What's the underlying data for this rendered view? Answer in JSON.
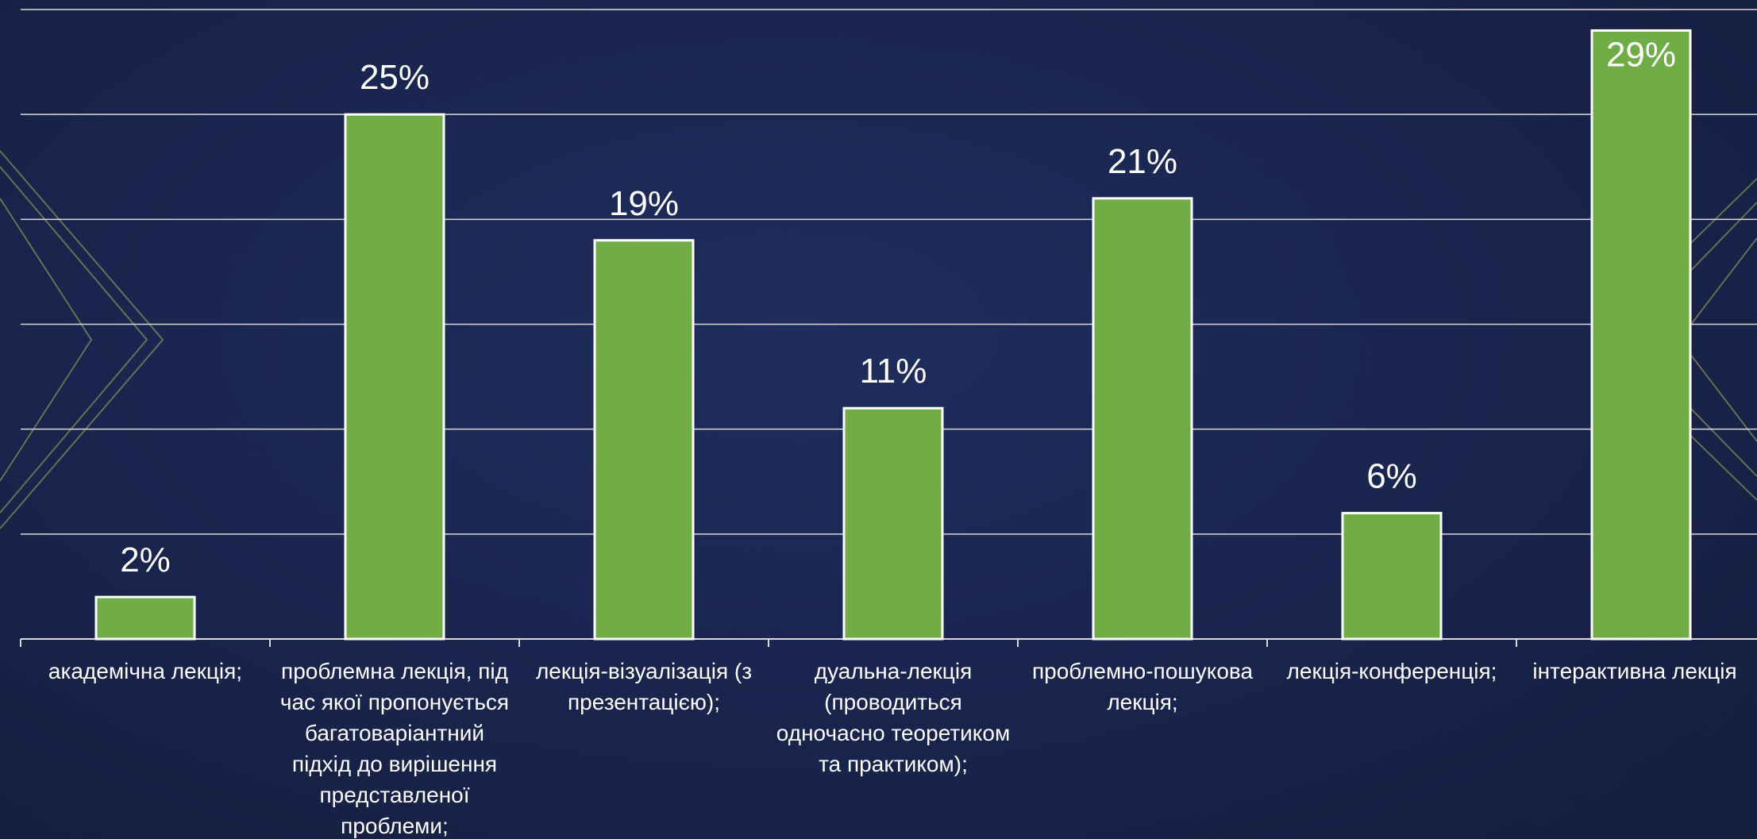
{
  "colors": {
    "background": "#19244d",
    "bar_fill": "#70ad47",
    "bar_stroke": "#ffffff",
    "grid": "#d9d9d9",
    "text": "#ffffff",
    "decor_line": "#8a8f5a"
  },
  "chart_data": {
    "type": "bar",
    "categories": [
      "академічна лекція;",
      "проблемна лекція, під час якої пропонується багатоваріантний підхід до вирішення представленої проблеми;",
      "лекція-візуалізація (з презентацією);",
      "дуальна-лекція (проводиться одночасно теоретиком та практиком);",
      "проблемно-пошукова лекція;",
      "лекція-конференція;",
      "інтерактивна лекція"
    ],
    "values": [
      2,
      25,
      19,
      11,
      21,
      6,
      29
    ],
    "data_labels": [
      "2%",
      "25%",
      "19%",
      "11%",
      "21%",
      "6%",
      "29%"
    ],
    "ylim": [
      0,
      30
    ],
    "y_gridlines": [
      5,
      10,
      15,
      20,
      25,
      30
    ],
    "grid": true,
    "legend": "none",
    "title": "",
    "xlabel": "",
    "ylabel": ""
  }
}
